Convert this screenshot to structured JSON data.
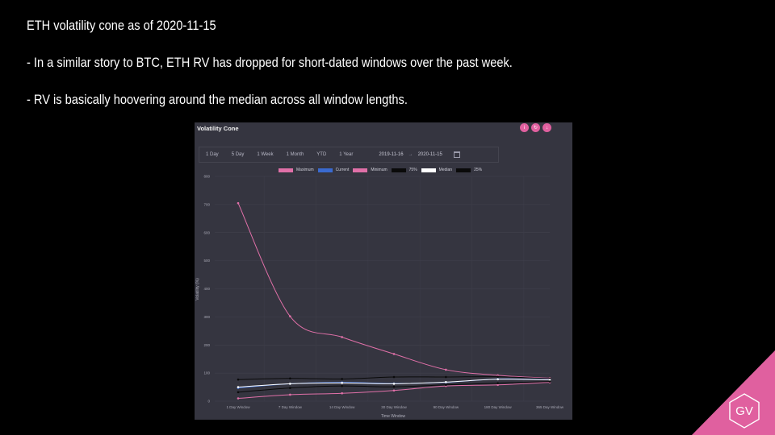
{
  "slide": {
    "title": "ETH volatility cone as of 2020-11-15",
    "bullets": [
      "- In a similar story to BTC, ETH RV has dropped for short-dated windows over the past week.",
      "- RV is basically hoovering around the median across all window lengths."
    ],
    "logo_text": "GV",
    "accent_color": "#e0609f"
  },
  "panel": {
    "title": "Volatility Cone",
    "actions": [
      {
        "icon": "info-icon",
        "glyph": "i"
      },
      {
        "icon": "refresh-icon",
        "glyph": "↻"
      },
      {
        "icon": "download-icon",
        "glyph": "↓"
      }
    ],
    "ranges": [
      "1 Day",
      "5 Day",
      "1 Week",
      "1 Month",
      "YTD",
      "1 Year"
    ],
    "date_from": "2019-11-16",
    "date_separator": "→",
    "date_to": "2020-11-15"
  },
  "chart_data": {
    "type": "line",
    "xlabel": "Time Window",
    "ylabel": "Volatility (%)",
    "ylim": [
      0,
      800
    ],
    "yticks": [
      0,
      100,
      200,
      300,
      400,
      500,
      600,
      700,
      800
    ],
    "grid": true,
    "legend_position": "top",
    "categories": [
      "1 Day Window",
      "7 Day Window",
      "14 Day Window",
      "30 Day Window",
      "90 Day Window",
      "180 Day Window",
      "365 Day Window"
    ],
    "series": [
      {
        "name": "Maximum",
        "color": "#e070a8",
        "values": [
          705,
          302,
          228,
          168,
          112,
          92,
          82
        ]
      },
      {
        "name": "Current",
        "color": "#3a6ad0",
        "values": [
          47,
          62,
          67,
          63,
          67,
          79,
          77
        ]
      },
      {
        "name": "Minimum",
        "color": "#e070a8",
        "values": [
          10,
          23,
          28,
          38,
          54,
          58,
          67
        ]
      },
      {
        "name": "75%",
        "color": "#0a0a0a",
        "values": [
          77,
          81,
          79,
          86,
          86,
          87,
          80
        ]
      },
      {
        "name": "Median",
        "color": "#ffffff",
        "values": [
          50,
          62,
          65,
          62,
          68,
          78,
          76
        ]
      },
      {
        "name": "25%",
        "color": "#0a0a0a",
        "values": [
          32,
          47,
          54,
          51,
          58,
          64,
          70
        ]
      }
    ]
  }
}
